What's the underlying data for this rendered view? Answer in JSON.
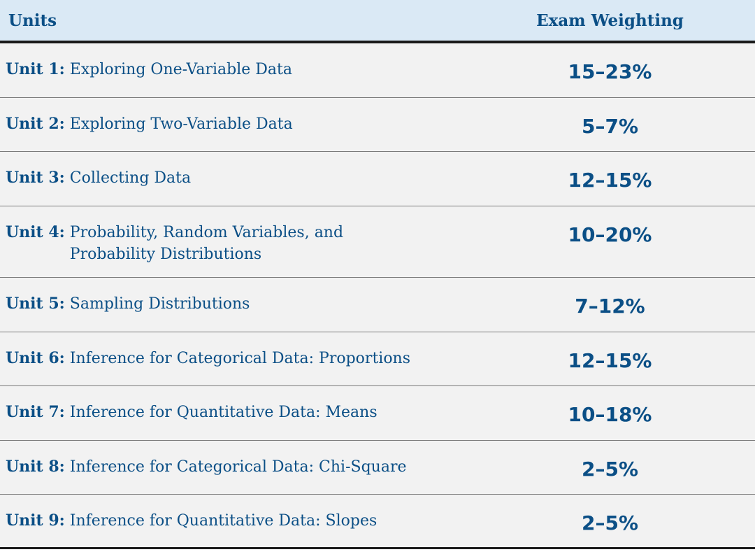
{
  "header": {
    "units_label": "Units",
    "weighting_label": "Exam Weighting"
  },
  "rows": [
    {
      "unit": "Unit 1:",
      "title": "Exploring One-Variable Data",
      "weighting": "15–23%"
    },
    {
      "unit": "Unit 2:",
      "title": "Exploring Two-Variable Data",
      "weighting": "5–7%"
    },
    {
      "unit": "Unit 3:",
      "title": "Collecting Data",
      "weighting": "12–15%"
    },
    {
      "unit": "Unit 4:",
      "title": "Probability, Random Variables, and Probability Distributions",
      "weighting": "10–20%"
    },
    {
      "unit": "Unit 5:",
      "title": "Sampling Distributions",
      "weighting": "7–12%"
    },
    {
      "unit": "Unit 6:",
      "title": "Inference for Categorical Data: Proportions",
      "weighting": "12–15%"
    },
    {
      "unit": "Unit 7:",
      "title": "Inference for Quantitative Data: Means",
      "weighting": "10–18%"
    },
    {
      "unit": "Unit 8:",
      "title": "Inference for Categorical Data: Chi-Square",
      "weighting": "2–5%"
    },
    {
      "unit": "Unit 9:",
      "title": "Inference for Quantitative Data: Slopes",
      "weighting": "2–5%"
    }
  ]
}
